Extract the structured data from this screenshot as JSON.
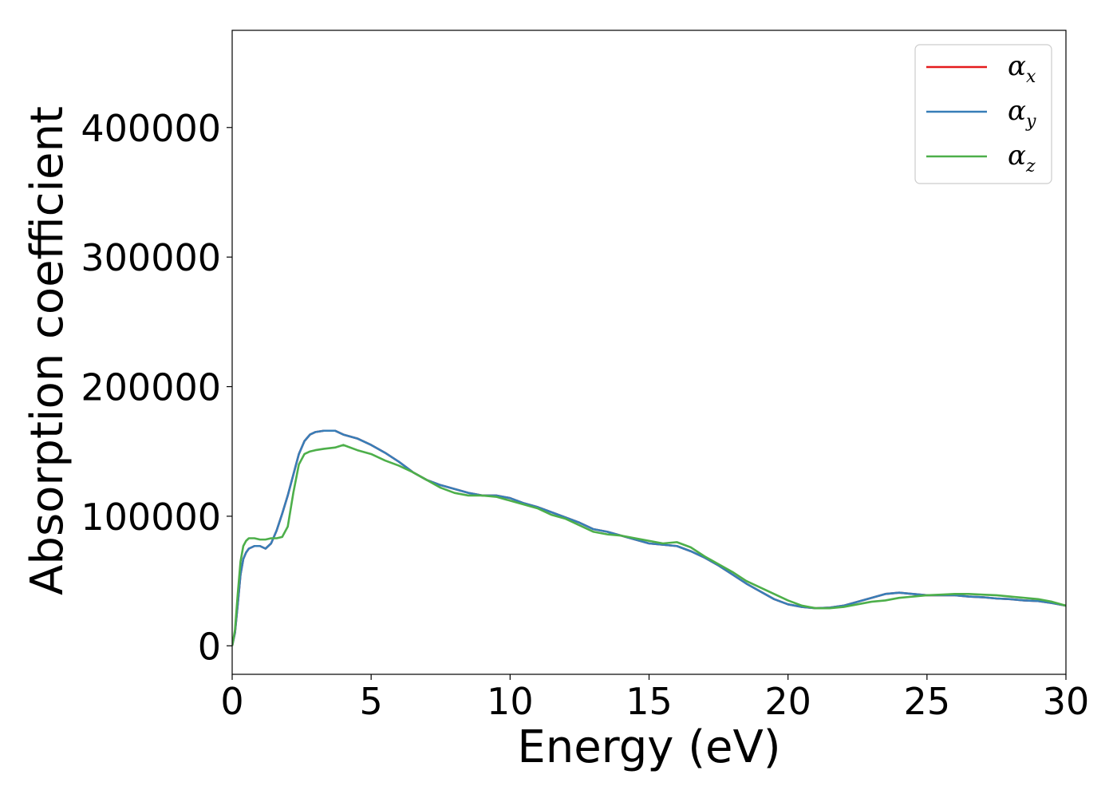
{
  "chart_data": {
    "type": "line",
    "title": "",
    "xlabel": "Energy (eV)",
    "ylabel": "Absorption coefficient",
    "xlim": [
      0,
      30
    ],
    "ylim": [
      -22000,
      475000
    ],
    "xticks": [
      0,
      5,
      10,
      15,
      20,
      25,
      30
    ],
    "xtick_labels": [
      "0",
      "5",
      "10",
      "15",
      "20",
      "25",
      "30"
    ],
    "yticks": [
      0,
      100000,
      200000,
      300000,
      400000
    ],
    "ytick_labels": [
      "0",
      "100000",
      "200000",
      "300000",
      "400000"
    ],
    "grid": false,
    "legend_position": "top-right",
    "legend": [
      {
        "symbol": "α",
        "subscript": "x",
        "color": "#e41a1c"
      },
      {
        "symbol": "α",
        "subscript": "y",
        "color": "#377eb8"
      },
      {
        "symbol": "α",
        "subscript": "z",
        "color": "#4daf4a"
      }
    ],
    "series": [
      {
        "name": "αx",
        "color": "#e41a1c",
        "x": [
          0,
          0.1,
          0.2,
          0.3,
          0.4,
          0.5,
          0.6,
          0.8,
          1.0,
          1.2,
          1.4,
          1.6,
          1.8,
          2.0,
          2.2,
          2.4,
          2.6,
          2.8,
          3.0,
          3.3,
          3.7,
          4.0,
          4.5,
          5.0,
          5.5,
          6.0,
          6.5,
          7.0,
          7.5,
          8.0,
          8.5,
          9.0,
          9.5,
          10.0,
          10.5,
          11.0,
          11.5,
          12.0,
          12.5,
          13.0,
          13.5,
          14.0,
          14.5,
          15.0,
          15.5,
          16.0,
          16.5,
          17.0,
          17.5,
          18.0,
          18.5,
          19.0,
          19.5,
          20.0,
          20.5,
          21.0,
          21.5,
          22.0,
          22.5,
          23.0,
          23.5,
          24.0,
          24.5,
          25.0,
          25.5,
          26.0,
          26.5,
          27.0,
          27.5,
          28.0,
          28.5,
          29.0,
          29.5,
          30.0
        ],
        "y": [
          0,
          10000,
          32000,
          55000,
          67000,
          72000,
          75000,
          77000,
          77000,
          75000,
          79000,
          89000,
          102000,
          116000,
          132000,
          148000,
          158000,
          163000,
          165000,
          166000,
          166000,
          163000,
          160000,
          155000,
          149000,
          142000,
          134000,
          128000,
          124000,
          121000,
          118000,
          116000,
          116000,
          114000,
          110000,
          107000,
          103000,
          99000,
          95000,
          90000,
          88000,
          85000,
          82000,
          79000,
          78000,
          77000,
          73000,
          68000,
          62000,
          55000,
          48000,
          42000,
          36000,
          32000,
          30000,
          29000,
          29500,
          31000,
          34000,
          37000,
          40000,
          41000,
          40000,
          39000,
          39000,
          39000,
          38000,
          37500,
          36500,
          36000,
          35000,
          34500,
          33000,
          31000
        ]
      },
      {
        "name": "αy",
        "color": "#377eb8",
        "x": [
          0,
          0.1,
          0.2,
          0.3,
          0.4,
          0.5,
          0.6,
          0.8,
          1.0,
          1.2,
          1.4,
          1.6,
          1.8,
          2.0,
          2.2,
          2.4,
          2.6,
          2.8,
          3.0,
          3.3,
          3.7,
          4.0,
          4.5,
          5.0,
          5.5,
          6.0,
          6.5,
          7.0,
          7.5,
          8.0,
          8.5,
          9.0,
          9.5,
          10.0,
          10.5,
          11.0,
          11.5,
          12.0,
          12.5,
          13.0,
          13.5,
          14.0,
          14.5,
          15.0,
          15.5,
          16.0,
          16.5,
          17.0,
          17.5,
          18.0,
          18.5,
          19.0,
          19.5,
          20.0,
          20.5,
          21.0,
          21.5,
          22.0,
          22.5,
          23.0,
          23.5,
          24.0,
          24.5,
          25.0,
          25.5,
          26.0,
          26.5,
          27.0,
          27.5,
          28.0,
          28.5,
          29.0,
          29.5,
          30.0
        ],
        "y": [
          0,
          10000,
          32000,
          55000,
          67000,
          72000,
          75000,
          77000,
          77000,
          75000,
          79000,
          89000,
          102000,
          116000,
          132000,
          148000,
          158000,
          163000,
          165000,
          166000,
          166000,
          163000,
          160000,
          155000,
          149000,
          142000,
          134000,
          128000,
          124000,
          121000,
          118000,
          116000,
          116000,
          114000,
          110000,
          107000,
          103000,
          99000,
          95000,
          90000,
          88000,
          85000,
          82000,
          79000,
          78000,
          77000,
          73000,
          68000,
          62000,
          55000,
          48000,
          42000,
          36000,
          32000,
          30000,
          29000,
          29500,
          31000,
          34000,
          37000,
          40000,
          41000,
          40000,
          39000,
          39000,
          39000,
          38000,
          37500,
          36500,
          36000,
          35000,
          34500,
          33000,
          31000
        ]
      },
      {
        "name": "αz",
        "color": "#4daf4a",
        "x": [
          0,
          0.1,
          0.2,
          0.3,
          0.4,
          0.5,
          0.6,
          0.8,
          1.0,
          1.2,
          1.4,
          1.6,
          1.8,
          2.0,
          2.2,
          2.4,
          2.6,
          2.8,
          3.0,
          3.3,
          3.7,
          4.0,
          4.5,
          5.0,
          5.5,
          6.0,
          6.5,
          7.0,
          7.5,
          8.0,
          8.5,
          9.0,
          9.5,
          10.0,
          10.5,
          11.0,
          11.5,
          12.0,
          12.5,
          13.0,
          13.5,
          14.0,
          14.5,
          15.0,
          15.5,
          16.0,
          16.5,
          17.0,
          17.5,
          18.0,
          18.5,
          19.0,
          19.5,
          20.0,
          20.5,
          21.0,
          21.5,
          22.0,
          22.5,
          23.0,
          23.5,
          24.0,
          24.5,
          25.0,
          25.5,
          26.0,
          26.5,
          27.0,
          27.5,
          28.0,
          28.5,
          29.0,
          29.5,
          30.0
        ],
        "y": [
          0,
          12000,
          40000,
          65000,
          77000,
          81000,
          83000,
          83000,
          82000,
          82000,
          83000,
          83000,
          84000,
          92000,
          118000,
          140000,
          148000,
          150000,
          151000,
          152000,
          153000,
          155000,
          151000,
          148000,
          143000,
          139000,
          134000,
          128000,
          122000,
          118000,
          116000,
          116000,
          115000,
          112000,
          109000,
          106000,
          101000,
          98000,
          93000,
          88000,
          86000,
          85000,
          83000,
          81000,
          79000,
          80000,
          76000,
          69000,
          63000,
          57000,
          50000,
          45000,
          40000,
          35000,
          31000,
          29000,
          29000,
          30000,
          32000,
          34000,
          35000,
          37000,
          38000,
          39000,
          39500,
          40000,
          40000,
          39500,
          39000,
          38000,
          37000,
          36000,
          34000,
          31000
        ]
      }
    ]
  }
}
